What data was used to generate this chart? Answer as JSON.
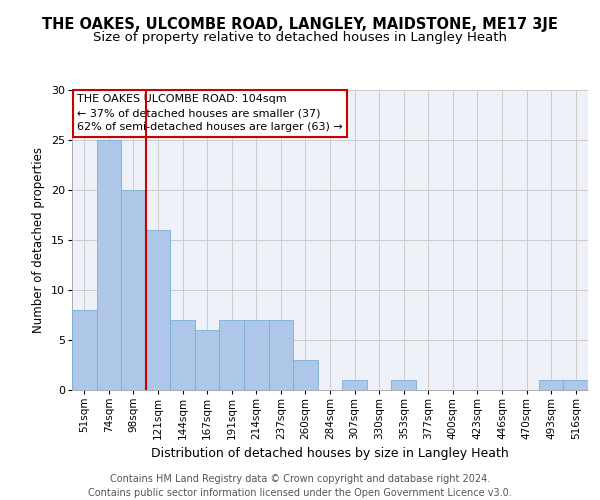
{
  "title": "THE OAKES, ULCOMBE ROAD, LANGLEY, MAIDSTONE, ME17 3JE",
  "subtitle": "Size of property relative to detached houses in Langley Heath",
  "xlabel": "Distribution of detached houses by size in Langley Heath",
  "ylabel": "Number of detached properties",
  "categories": [
    "51sqm",
    "74sqm",
    "98sqm",
    "121sqm",
    "144sqm",
    "167sqm",
    "191sqm",
    "214sqm",
    "237sqm",
    "260sqm",
    "284sqm",
    "307sqm",
    "330sqm",
    "353sqm",
    "377sqm",
    "400sqm",
    "423sqm",
    "446sqm",
    "470sqm",
    "493sqm",
    "516sqm"
  ],
  "values": [
    8,
    25,
    20,
    16,
    7,
    6,
    7,
    7,
    7,
    3,
    0,
    1,
    0,
    1,
    0,
    0,
    0,
    0,
    0,
    1,
    1
  ],
  "bar_color": "#aec6e8",
  "bar_edgecolor": "#7aafd4",
  "vline_index": 2,
  "vline_color": "#cc0000",
  "annotation_text": "THE OAKES ULCOMBE ROAD: 104sqm\n← 37% of detached houses are smaller (37)\n62% of semi-detached houses are larger (63) →",
  "annotation_box_edgecolor": "#cc0000",
  "ylim": [
    0,
    30
  ],
  "yticks": [
    0,
    5,
    10,
    15,
    20,
    25,
    30
  ],
  "grid_color": "#cccccc",
  "bg_color": "#eef2f8",
  "footer": "Contains HM Land Registry data © Crown copyright and database right 2024.\nContains public sector information licensed under the Open Government Licence v3.0.",
  "title_fontsize": 10.5,
  "subtitle_fontsize": 9.5,
  "xlabel_fontsize": 9,
  "ylabel_fontsize": 8.5,
  "tick_fontsize": 7.5,
  "ytick_fontsize": 8,
  "footer_fontsize": 7,
  "annotation_fontsize": 8
}
